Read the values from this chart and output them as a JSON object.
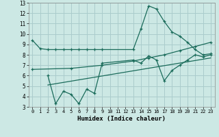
{
  "xlabel": "Humidex (Indice chaleur)",
  "xlim": [
    -0.5,
    23.5
  ],
  "ylim": [
    3,
    13
  ],
  "yticks": [
    3,
    4,
    5,
    6,
    7,
    8,
    9,
    10,
    11,
    12,
    13
  ],
  "xticks": [
    0,
    1,
    2,
    3,
    4,
    5,
    6,
    7,
    8,
    9,
    10,
    11,
    12,
    13,
    14,
    15,
    16,
    17,
    18,
    19,
    20,
    21,
    22,
    23
  ],
  "bg_color": "#cce8e4",
  "grid_color": "#aacccc",
  "line_color": "#1a6b5a",
  "line1_x": [
    0,
    1,
    2,
    3,
    4,
    5,
    6,
    7,
    8,
    9,
    13,
    14,
    15,
    16,
    17,
    18,
    19,
    20,
    21,
    22,
    23
  ],
  "line1_y": [
    9.4,
    8.6,
    8.5,
    8.5,
    8.5,
    8.5,
    8.5,
    8.5,
    8.5,
    8.5,
    8.5,
    10.5,
    12.7,
    12.4,
    11.2,
    10.2,
    9.8,
    9.2,
    8.5,
    8.0,
    8.1
  ],
  "line2_x": [
    0,
    5,
    9,
    13,
    15,
    17,
    19,
    21,
    23
  ],
  "line2_y": [
    6.6,
    6.7,
    7.0,
    7.4,
    7.7,
    8.0,
    8.4,
    8.8,
    9.2
  ],
  "line3_x": [
    2,
    3,
    4,
    5,
    6,
    7,
    8,
    9,
    13,
    14,
    15,
    16,
    17,
    18,
    19,
    20,
    21,
    22,
    23
  ],
  "line3_y": [
    6.0,
    3.3,
    4.5,
    4.2,
    3.3,
    4.7,
    4.3,
    7.2,
    7.5,
    7.2,
    7.9,
    7.5,
    5.5,
    6.5,
    7.0,
    7.5,
    8.0,
    7.8,
    8.0
  ],
  "line4_x": [
    2,
    23
  ],
  "line4_y": [
    5.1,
    7.7
  ]
}
